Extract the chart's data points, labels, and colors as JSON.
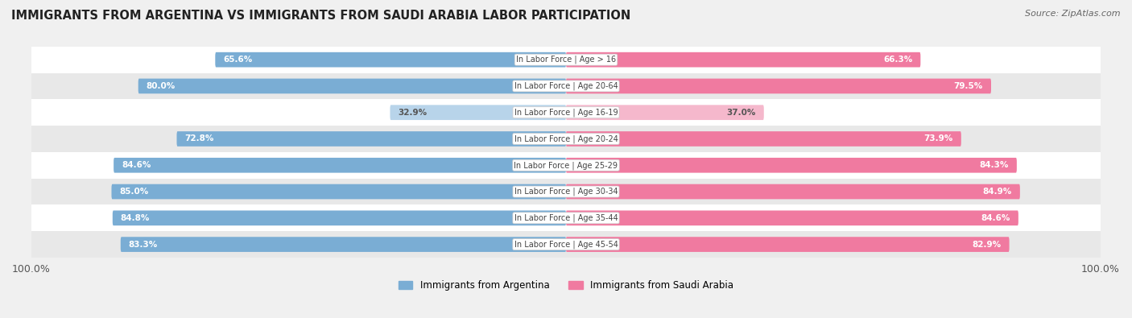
{
  "title": "IMMIGRANTS FROM ARGENTINA VS IMMIGRANTS FROM SAUDI ARABIA LABOR PARTICIPATION",
  "source": "Source: ZipAtlas.com",
  "categories": [
    "In Labor Force | Age > 16",
    "In Labor Force | Age 20-64",
    "In Labor Force | Age 16-19",
    "In Labor Force | Age 20-24",
    "In Labor Force | Age 25-29",
    "In Labor Force | Age 30-34",
    "In Labor Force | Age 35-44",
    "In Labor Force | Age 45-54"
  ],
  "argentina_values": [
    65.6,
    80.0,
    32.9,
    72.8,
    84.6,
    85.0,
    84.8,
    83.3
  ],
  "saudi_values": [
    66.3,
    79.5,
    37.0,
    73.9,
    84.3,
    84.9,
    84.6,
    82.9
  ],
  "argentina_color": "#7aadd4",
  "argentina_color_light": "#b8d4ea",
  "saudi_color": "#f07aa0",
  "saudi_color_light": "#f5b8cc",
  "label_argentina": "Immigrants from Argentina",
  "label_saudi": "Immigrants from Saudi Arabia",
  "bar_height": 0.55,
  "background_color": "#f0f0f0",
  "max_value": 100.0
}
